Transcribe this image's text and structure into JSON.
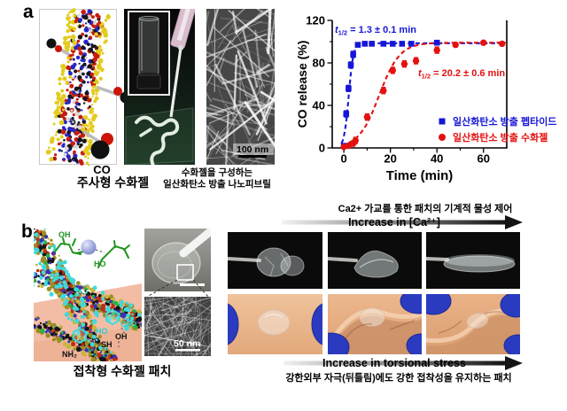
{
  "panel_a": {
    "label": "a",
    "co_label": "CO",
    "caption_injectable": "주사형 수화젤",
    "nanofibril_caption_line1": "수화젤을 구성하는",
    "nanofibril_caption_line2": "일산화탄소 방출 나노피브릴",
    "sem_scale_label": "100 nm"
  },
  "chart_data": {
    "type": "scatter",
    "title": "",
    "xlabel": "Time (min)",
    "ylabel": "CO release (%)",
    "xlim": [
      -5,
      70
    ],
    "ylim": [
      0,
      120
    ],
    "x_ticks": [
      0,
      20,
      40,
      60
    ],
    "y_ticks": [
      0,
      40,
      80,
      120
    ],
    "x_minor_ticks": [
      10,
      30,
      50
    ],
    "y_minor_ticks": [
      20,
      60,
      100
    ],
    "grid": false,
    "line_style": "dashed",
    "legend_position": "lower-right",
    "series": [
      {
        "name": "일산화탄소 방출 펩타이드",
        "marker": "square",
        "color": "#1616d8",
        "t_half": "1.3 ± 0.1 min",
        "x": [
          0,
          1,
          2,
          3,
          4,
          6,
          9,
          12,
          17,
          21,
          25,
          29,
          40
        ],
        "y": [
          2,
          32,
          56,
          78,
          88,
          97,
          98,
          98,
          98,
          98,
          98,
          98,
          99
        ]
      },
      {
        "name": "일산화탄소 방출 수화젤",
        "marker": "circle",
        "color": "#e41111",
        "t_half": "20.2 ± 0.6 min",
        "x": [
          0,
          2,
          4,
          5,
          10,
          17,
          21,
          26,
          31,
          40,
          48,
          60,
          68
        ],
        "y": [
          1,
          2,
          4,
          7,
          29,
          54,
          73,
          79,
          82,
          92,
          97,
          99,
          98
        ]
      }
    ],
    "annotations": [
      {
        "var": "t",
        "sub": "1/2",
        "rest": " = 1.3 ± 0.1 min",
        "color": "#1616d8"
      },
      {
        "var": "t",
        "sub": "1/2",
        "rest": " = 20.2 ± 0.6 min",
        "color": "#e41111"
      }
    ]
  },
  "panel_b": {
    "label": "b",
    "caption_adhesive": "접착형 수화젤 패치",
    "sem_scale_label": "50 nm",
    "molecule_labels": {
      "oh_green_top": "OH",
      "ho_green_right": "HO",
      "oh_catechol_1": "OH",
      "ho_catechol_2": "HO",
      "oh_skin": "OH",
      "sh_skin": "SH",
      "nh2_skin": "NH₂"
    },
    "ca_section": {
      "title": "Ca2+ 가교를 통한 패치의 기계적 물성 제어",
      "arrow_label": "Increase in [Ca²⁺]"
    },
    "torsion_section": {
      "arrow_label": "Increase in torsional stress",
      "caption": "강한외부 자극(뒤틀림)에도 강한 접착성을 유지하는 패치"
    }
  },
  "colors": {
    "series_peptide": "#1616d8",
    "series_hydrogel": "#e41111",
    "glove_blue": "#2b3bc0",
    "skin_pink": "#f3bca4"
  }
}
